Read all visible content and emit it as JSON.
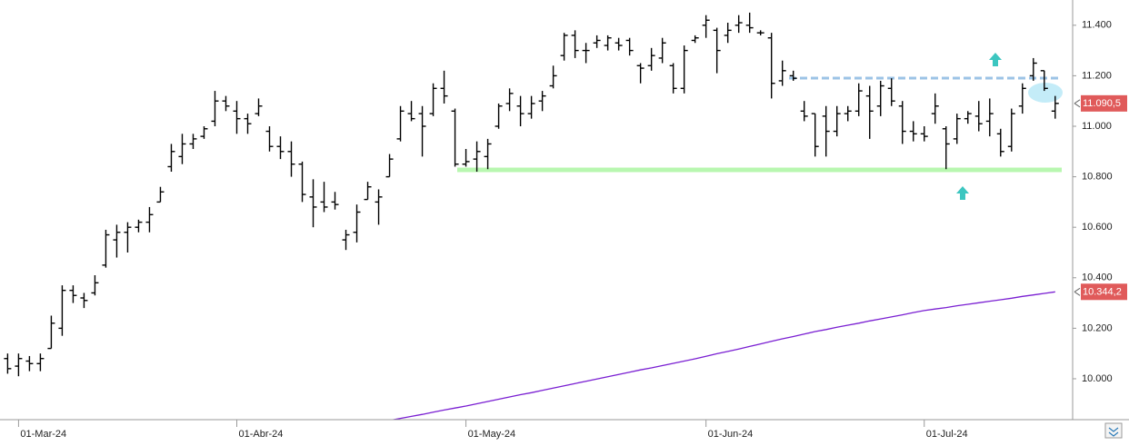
{
  "chart_data": {
    "type": "ohlc",
    "color": "#000000",
    "xlim": [
      -0.7,
      97.6
    ],
    "ylim": [
      9838,
      11500
    ],
    "xticks": [
      {
        "value": 1,
        "label": "01-Mar-24"
      },
      {
        "value": 21,
        "label": "01-Abr-24"
      },
      {
        "value": 42,
        "label": "01-May-24"
      },
      {
        "value": 64,
        "label": "01-Jun-24"
      },
      {
        "value": 84,
        "label": "01-Jul-24"
      }
    ],
    "yticks": [
      {
        "value": 10000,
        "label": "10.000"
      },
      {
        "value": 10200,
        "label": "10.200"
      },
      {
        "value": 10400,
        "label": "10.400"
      },
      {
        "value": 10600,
        "label": "10.600"
      },
      {
        "value": 10800,
        "label": "10.800"
      },
      {
        "value": 11000,
        "label": "11.000"
      },
      {
        "value": 11200,
        "label": "11.200"
      },
      {
        "value": 11400,
        "label": "11.400"
      }
    ],
    "open": [
      10080,
      10050,
      10070,
      10060,
      10120,
      10200,
      10350,
      10320,
      10340,
      10450,
      10550,
      10580,
      10600,
      10620,
      10700,
      10840,
      10880,
      10930,
      10960,
      11020,
      11100,
      11060,
      11030,
      11050,
      10980,
      10920,
      10900,
      10850,
      10720,
      10700,
      10700,
      10550,
      10580,
      10710,
      10700,
      10800,
      10950,
      11050,
      11050,
      11050,
      11150,
      11060,
      10850,
      10870,
      10880,
      11000,
      11090,
      11080,
      11050,
      11100,
      11160,
      11280,
      11360,
      11300,
      11330,
      11320,
      11330,
      11340,
      11240,
      11240,
      11270,
      11240,
      11150,
      11340,
      11400,
      11380,
      11360,
      11400,
      11400,
      11370,
      11350,
      11180,
      11200,
      11060,
      11050,
      11040,
      10980,
      11050,
      11060,
      11120,
      11080,
      11150,
      11080,
      10980,
      10970,
      11050,
      10990,
      10950,
      11030,
      11040,
      11020,
      10970,
      10920,
      11080,
      11200,
      11220,
      11060
    ],
    "high": [
      10100,
      10100,
      10090,
      10100,
      10250,
      10370,
      10370,
      10340,
      10410,
      10590,
      10610,
      10620,
      10630,
      10680,
      10760,
      10930,
      10970,
      10970,
      11000,
      11140,
      11120,
      11100,
      11050,
      11110,
      11000,
      10960,
      10940,
      10860,
      10790,
      10780,
      10740,
      10590,
      10690,
      10780,
      10750,
      10890,
      11080,
      11100,
      11080,
      11170,
      11220,
      11070,
      10910,
      10940,
      10950,
      11090,
      11150,
      11120,
      11120,
      11140,
      11240,
      11370,
      11380,
      11330,
      11360,
      11360,
      11350,
      11350,
      11250,
      11310,
      11350,
      11250,
      11320,
      11360,
      11440,
      11390,
      11410,
      11440,
      11450,
      11380,
      11370,
      11260,
      11220,
      11100,
      11050,
      11080,
      11080,
      11080,
      11170,
      11160,
      11180,
      11190,
      11100,
      11020,
      11000,
      11130,
      11000,
      11050,
      11060,
      11100,
      11110,
      10990,
      11070,
      11170,
      11270,
      11220,
      11120
    ],
    "low": [
      10020,
      10010,
      10030,
      10030,
      10120,
      10170,
      10300,
      10280,
      10330,
      10440,
      10480,
      10500,
      10580,
      10580,
      10700,
      10820,
      10850,
      10910,
      10950,
      11000,
      11060,
      10970,
      10970,
      11040,
      10900,
      10870,
      10800,
      10700,
      10600,
      10660,
      10670,
      10510,
      10540,
      10710,
      10610,
      10800,
      10940,
      11020,
      10880,
      11040,
      11090,
      10840,
      10840,
      10820,
      10830,
      10990,
      11060,
      11000,
      11030,
      11060,
      11150,
      11260,
      11270,
      11250,
      11310,
      11300,
      11300,
      11280,
      11170,
      11220,
      11250,
      11130,
      11130,
      11330,
      11350,
      11210,
      11330,
      11370,
      11370,
      11360,
      11110,
      11160,
      11180,
      11020,
      10880,
      10880,
      10960,
      11020,
      11040,
      10950,
      11040,
      11080,
      10930,
      10940,
      10940,
      11010,
      10830,
      10930,
      11010,
      10980,
      10960,
      10880,
      10900,
      11050,
      11180,
      11140,
      11030
    ],
    "close": [
      10040,
      10080,
      10060,
      10080,
      10220,
      10350,
      10330,
      10310,
      10380,
      10570,
      10580,
      10600,
      10620,
      10650,
      10740,
      10900,
      10930,
      10950,
      10990,
      11100,
      11080,
      11030,
      11010,
      11080,
      10920,
      10900,
      10850,
      10730,
      10680,
      10680,
      10690,
      10570,
      10660,
      10760,
      10720,
      10870,
      11060,
      11030,
      11000,
      11150,
      11120,
      10850,
      10860,
      10900,
      10930,
      11080,
      11130,
      11050,
      11090,
      11120,
      11200,
      11360,
      11300,
      11300,
      11340,
      11350,
      11320,
      11300,
      11230,
      11280,
      11330,
      11150,
      11300,
      11350,
      11420,
      11300,
      11380,
      11410,
      11390,
      11370,
      11170,
      11220,
      11190,
      11040,
      10920,
      10980,
      11050,
      11060,
      11140,
      11060,
      11160,
      11100,
      10980,
      10970,
      10960,
      11080,
      10930,
      11030,
      11050,
      11010,
      11050,
      10900,
      11050,
      11150,
      11250,
      11150,
      11090.5
    ],
    "ma": {
      "color": "#7a1fd2",
      "values": [
        null,
        null,
        null,
        null,
        null,
        null,
        null,
        null,
        null,
        null,
        null,
        null,
        null,
        null,
        null,
        null,
        null,
        null,
        null,
        null,
        null,
        null,
        null,
        null,
        null,
        null,
        null,
        null,
        null,
        null,
        null,
        null,
        null,
        null,
        9827,
        9835,
        9843,
        9851,
        9859,
        9868,
        9876,
        9884,
        9892,
        9901,
        9910,
        9919,
        9928,
        9937,
        9945,
        9954,
        9963,
        9972,
        9981,
        9990,
        9999,
        10008,
        10017,
        10026,
        10035,
        10043,
        10052,
        10061,
        10070,
        10079,
        10089,
        10099,
        10108,
        10118,
        10128,
        10138,
        10148,
        10158,
        10167,
        10177,
        10187,
        10195,
        10204,
        10212,
        10220,
        10229,
        10237,
        10245,
        10253,
        10262,
        10270,
        10276,
        10282,
        10289,
        10295,
        10301,
        10307,
        10313,
        10319,
        10326,
        10332,
        10338,
        10344.2
      ]
    },
    "price_tags": [
      {
        "value": 11090.5,
        "label": "11.090,5",
        "color": "#e05a5a"
      },
      {
        "value": 10344.2,
        "label": "10.344,2",
        "color": "#e05a5a"
      }
    ]
  }
}
